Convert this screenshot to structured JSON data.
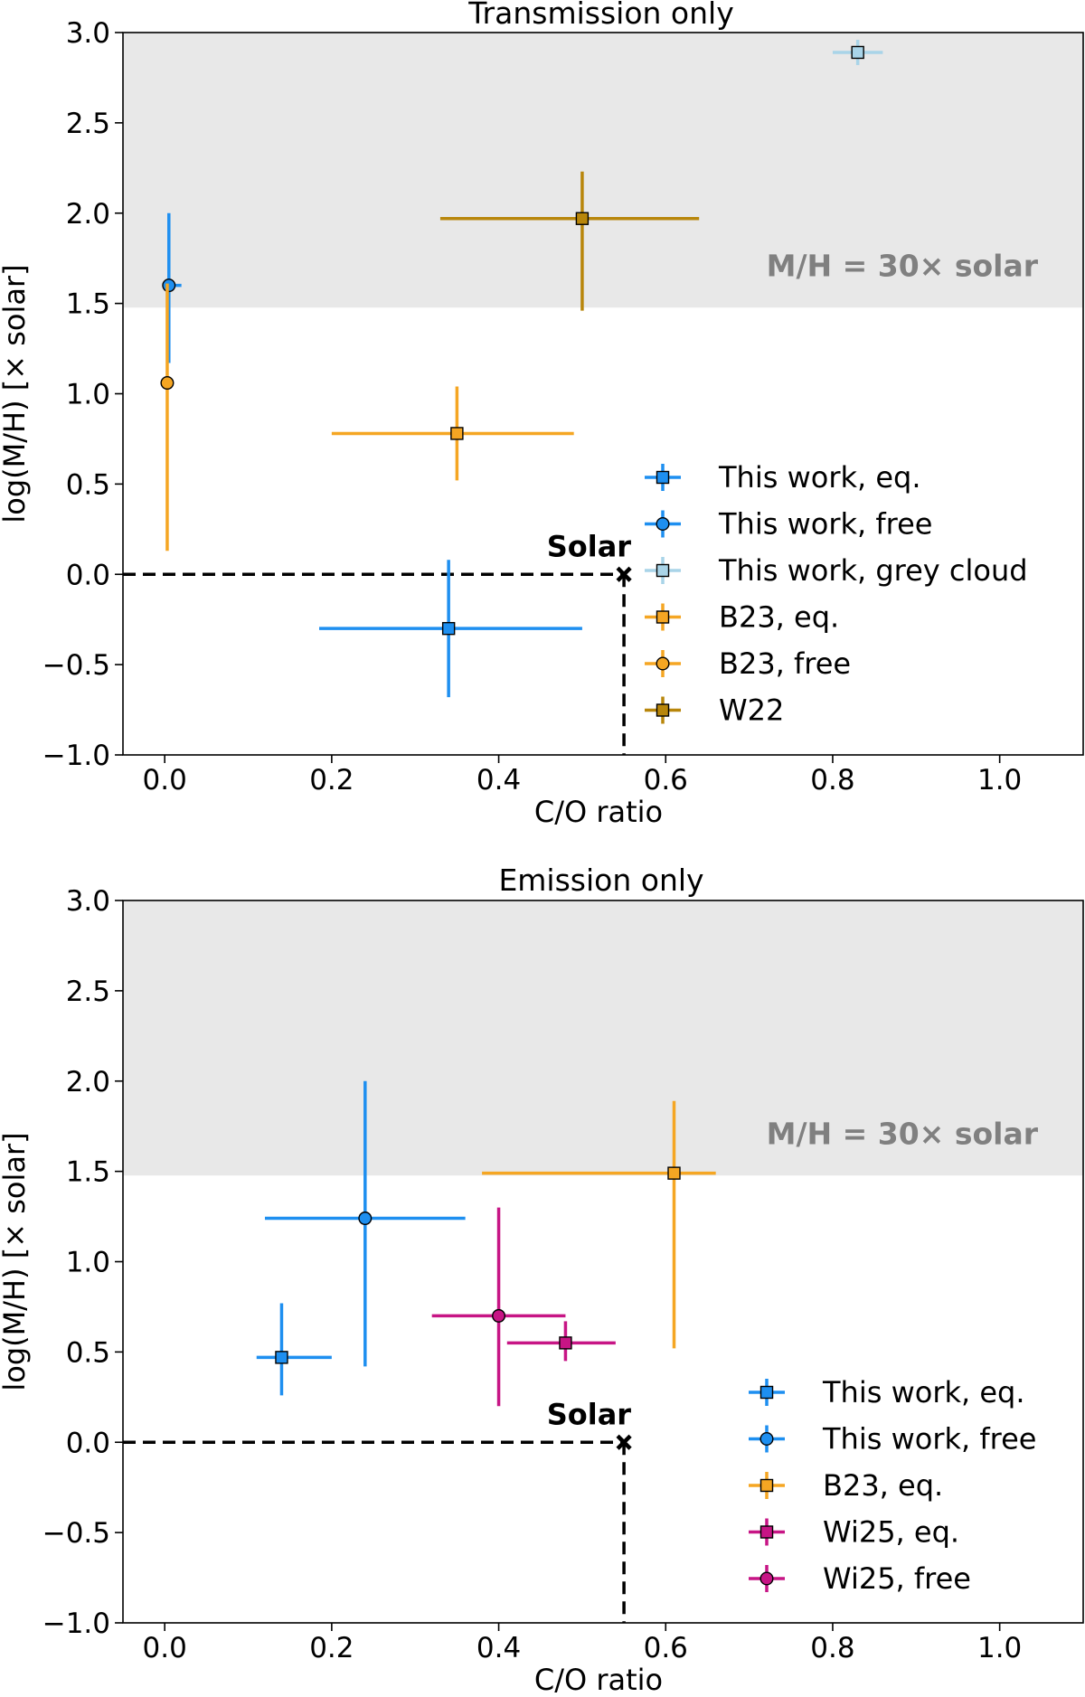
{
  "chart_data": [
    {
      "type": "scatter",
      "title": "Transmission only",
      "xlabel": "C/O ratio",
      "ylabel": "log(M/H) [× solar]",
      "xlim": [
        -0.05,
        1.1
      ],
      "ylim": [
        -1.0,
        3.0
      ],
      "x_ticks": [
        "0.0",
        "0.2",
        "0.4",
        "0.6",
        "0.8",
        "1.0"
      ],
      "y_ticks": [
        "−1.0",
        "−0.5",
        "0.0",
        "0.5",
        "1.0",
        "1.5",
        "2.0",
        "2.5",
        "3.0"
      ],
      "grid": false,
      "legend_position": "lower-right",
      "shaded_region": {
        "label": "M/H = 30× solar",
        "y_from": 1.477,
        "y_to": 3.0,
        "color": "#e8e8e8"
      },
      "reference_point": {
        "label": "Solar",
        "x": 0.55,
        "y": 0.0
      },
      "series": [
        {
          "name": "This work, eq.",
          "marker": "square",
          "color": "#1e8ff0",
          "points": [
            {
              "x": 0.34,
              "y": -0.3,
              "xerr": [
                0.155,
                0.16
              ],
              "yerr": [
                0.38,
                0.38
              ]
            }
          ]
        },
        {
          "name": "This work, free",
          "marker": "circle",
          "color": "#1e8ff0",
          "points": [
            {
              "x": 0.005,
              "y": 1.6,
              "xerr": [
                0.0,
                0.015
              ],
              "yerr": [
                0.43,
                0.4
              ]
            }
          ]
        },
        {
          "name": "This work, grey cloud",
          "marker": "square",
          "color": "#a9d4e8",
          "points": [
            {
              "x": 0.83,
              "y": 2.89,
              "xerr": [
                0.03,
                0.03
              ],
              "yerr": [
                0.07,
                0.07
              ]
            }
          ]
        },
        {
          "name": "B23, eq.",
          "marker": "square",
          "color": "#f5a623",
          "points": [
            {
              "x": 0.35,
              "y": 0.78,
              "xerr": [
                0.15,
                0.14
              ],
              "yerr": [
                0.26,
                0.26
              ]
            }
          ]
        },
        {
          "name": "B23, free",
          "marker": "circle",
          "color": "#f5a623",
          "points": [
            {
              "x": 0.003,
              "y": 1.06,
              "xerr": [
                0.0,
                0.0
              ],
              "yerr": [
                0.93,
                0.55
              ]
            }
          ]
        },
        {
          "name": "W22",
          "marker": "square",
          "color": "#b8860b",
          "points": [
            {
              "x": 0.5,
              "y": 1.97,
              "xerr": [
                0.17,
                0.14
              ],
              "yerr": [
                0.51,
                0.26
              ]
            }
          ]
        }
      ]
    },
    {
      "type": "scatter",
      "title": "Emission only",
      "xlabel": "C/O ratio",
      "ylabel": "log(M/H) [× solar]",
      "xlim": [
        -0.05,
        1.1
      ],
      "ylim": [
        -1.0,
        3.0
      ],
      "x_ticks": [
        "0.0",
        "0.2",
        "0.4",
        "0.6",
        "0.8",
        "1.0"
      ],
      "y_ticks": [
        "−1.0",
        "−0.5",
        "0.0",
        "0.5",
        "1.0",
        "1.5",
        "2.0",
        "2.5",
        "3.0"
      ],
      "grid": false,
      "legend_position": "lower-right",
      "shaded_region": {
        "label": "M/H = 30× solar",
        "y_from": 1.477,
        "y_to": 3.0,
        "color": "#e8e8e8"
      },
      "reference_point": {
        "label": "Solar",
        "x": 0.55,
        "y": 0.0
      },
      "series": [
        {
          "name": "This work, eq.",
          "marker": "square",
          "color": "#1e8ff0",
          "points": [
            {
              "x": 0.14,
              "y": 0.47,
              "xerr": [
                0.03,
                0.06
              ],
              "yerr": [
                0.21,
                0.3
              ]
            }
          ]
        },
        {
          "name": "This work, free",
          "marker": "circle",
          "color": "#1e8ff0",
          "points": [
            {
              "x": 0.24,
              "y": 1.24,
              "xerr": [
                0.12,
                0.12
              ],
              "yerr": [
                0.82,
                0.76
              ]
            }
          ]
        },
        {
          "name": "B23, eq.",
          "marker": "square",
          "color": "#f5a623",
          "points": [
            {
              "x": 0.61,
              "y": 1.49,
              "xerr": [
                0.23,
                0.05
              ],
              "yerr": [
                0.97,
                0.4
              ]
            }
          ]
        },
        {
          "name": "Wi25, eq.",
          "marker": "square",
          "color": "#c71585",
          "points": [
            {
              "x": 0.48,
              "y": 0.55,
              "xerr": [
                0.07,
                0.06
              ],
              "yerr": [
                0.1,
                0.12
              ]
            }
          ]
        },
        {
          "name": "Wi25, free",
          "marker": "circle",
          "color": "#c71585",
          "points": [
            {
              "x": 0.4,
              "y": 0.7,
              "xerr": [
                0.08,
                0.08
              ],
              "yerr": [
                0.5,
                0.6
              ]
            }
          ]
        }
      ]
    }
  ]
}
